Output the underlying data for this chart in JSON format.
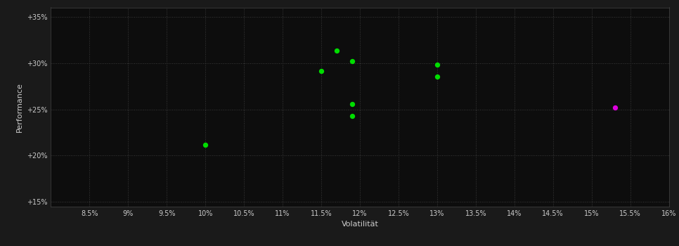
{
  "xlabel": "Volatilität",
  "ylabel": "Performance",
  "background_color": "#1a1a1a",
  "plot_bg_color": "#0d0d0d",
  "grid_color": "#3a3a3a",
  "text_color": "#cccccc",
  "spine_color": "#444444",
  "xlim": [
    0.08,
    0.16
  ],
  "ylim": [
    0.145,
    0.36
  ],
  "xticks": [
    0.085,
    0.09,
    0.095,
    0.1,
    0.105,
    0.11,
    0.115,
    0.12,
    0.125,
    0.13,
    0.135,
    0.14,
    0.145,
    0.15,
    0.155,
    0.16
  ],
  "xtick_labels": [
    "8.5%",
    "9%",
    "9.5%",
    "10%",
    "10.5%",
    "11%",
    "11.5%",
    "12%",
    "12.5%",
    "13%",
    "13.5%",
    "14%",
    "14.5%",
    "15%",
    "15.5%",
    "16%"
  ],
  "yticks": [
    0.15,
    0.2,
    0.25,
    0.3,
    0.35
  ],
  "ytick_labels": [
    "+15%",
    "+20%",
    "+25%",
    "+30%",
    "+35%"
  ],
  "green_points": [
    [
      0.1,
      0.212
    ],
    [
      0.115,
      0.291
    ],
    [
      0.117,
      0.313
    ],
    [
      0.119,
      0.302
    ],
    [
      0.119,
      0.256
    ],
    [
      0.119,
      0.243
    ],
    [
      0.13,
      0.298
    ],
    [
      0.13,
      0.285
    ]
  ],
  "magenta_points": [
    [
      0.153,
      0.252
    ]
  ],
  "green_color": "#00dd00",
  "magenta_color": "#dd00dd",
  "marker_size": 28
}
